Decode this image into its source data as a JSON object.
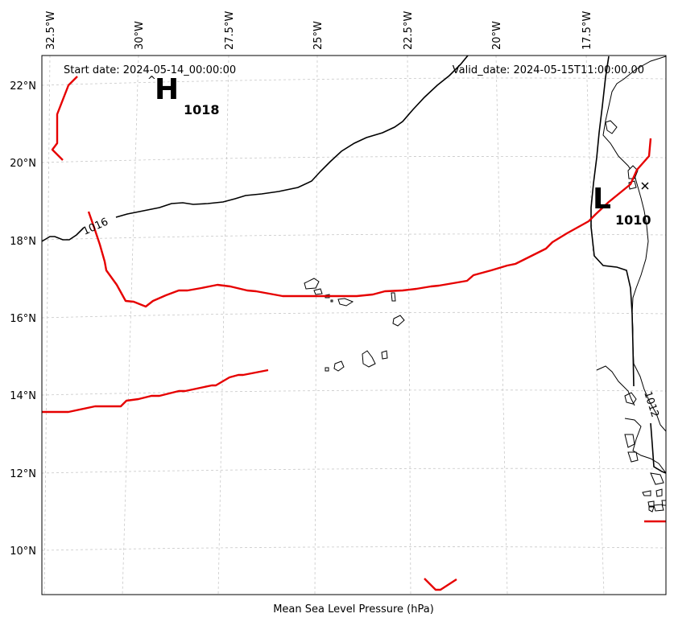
{
  "map": {
    "start_date": "Start date: 2024-05-14_00:00:00",
    "valid_date": "Valid_date: 2024-05-15T11:00:00.00",
    "xlabel": "Mean Sea Level Pressure (hPa)",
    "lon_ticks": [
      "32.5°W",
      "30°W",
      "27.5°W",
      "25°W",
      "22.5°W",
      "20°W",
      "17.5°W"
    ],
    "lat_ticks": [
      "22°N",
      "20°N",
      "18°N",
      "16°N",
      "14°N",
      "12°N",
      "10°N"
    ],
    "high": {
      "symbol": "H",
      "value": "1018"
    },
    "low": {
      "symbol": "L",
      "value": "1010"
    },
    "isobar_labels": [
      "1016",
      "1012"
    ],
    "colors": {
      "front": "#e60000",
      "isobar": "#000000",
      "grid": "#c8c8c8"
    }
  }
}
